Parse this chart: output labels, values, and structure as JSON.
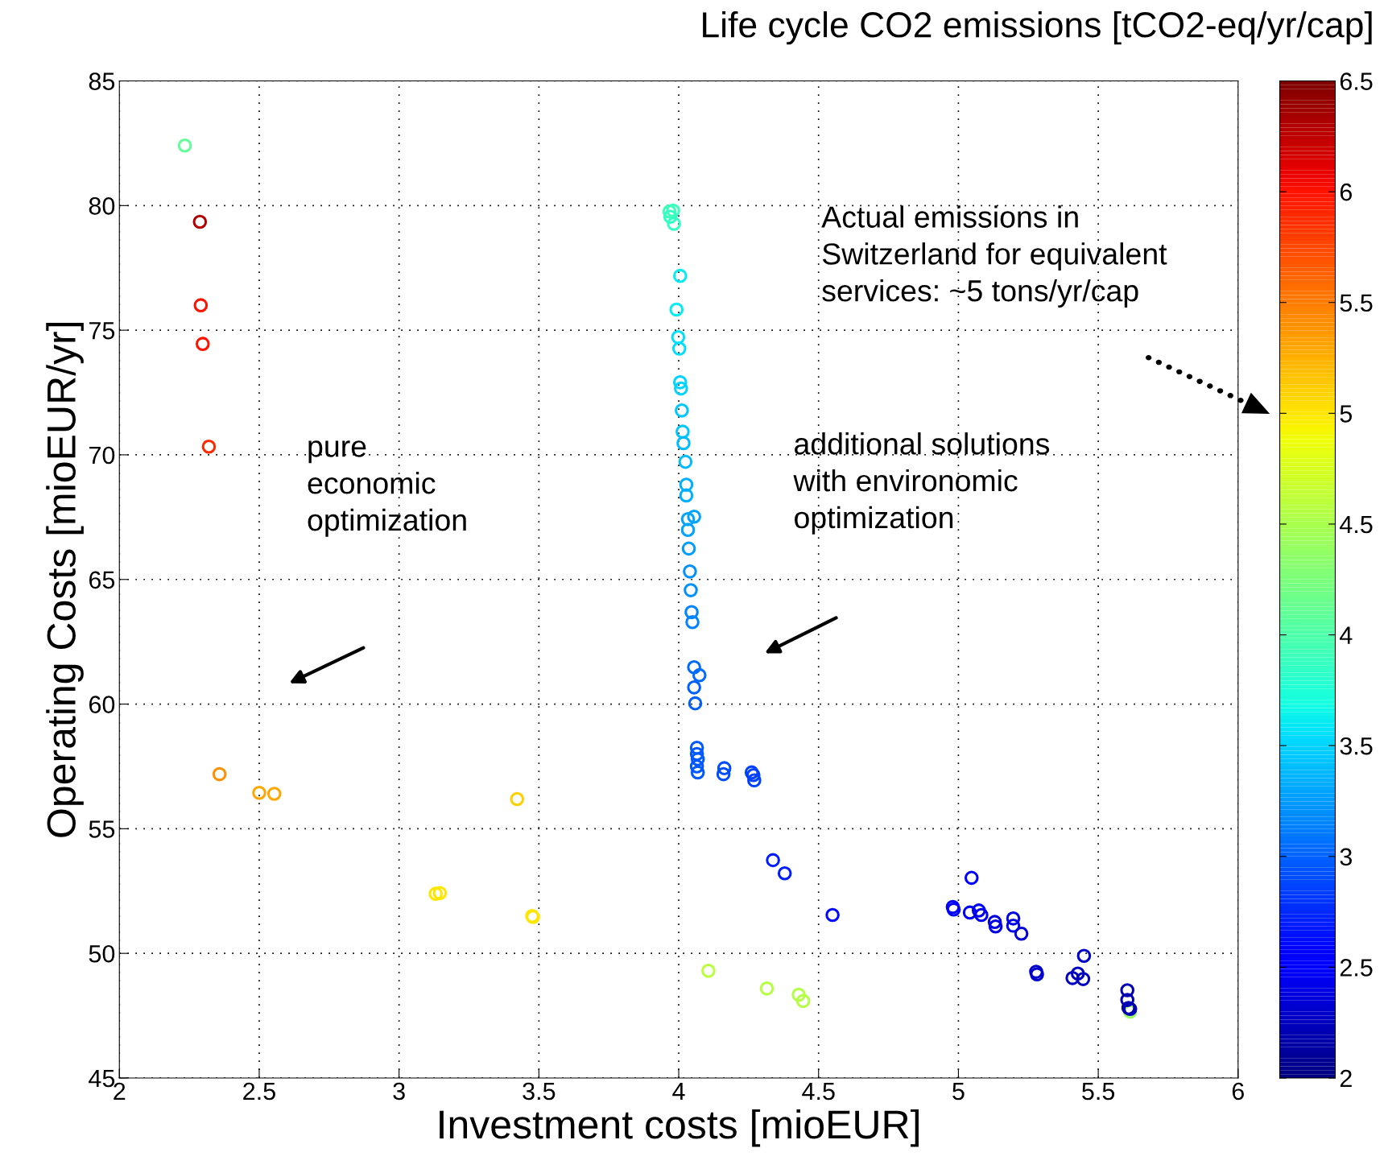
{
  "chart_data": {
    "type": "scatter",
    "xlabel": "Investment costs [mioEUR]",
    "ylabel": "Operating Costs [mioEUR/yr]",
    "clabel": "Life cycle CO2 emissions [tCO2-eq/yr/cap]",
    "xlim": [
      2,
      6
    ],
    "xticks": [
      2,
      2.5,
      3,
      3.5,
      4,
      4.5,
      5,
      5.5,
      6
    ],
    "ylim": [
      45,
      85
    ],
    "yticks": [
      45,
      50,
      55,
      60,
      65,
      70,
      75,
      80,
      85
    ],
    "clim": [
      2,
      6.5
    ],
    "cticks": [
      2,
      2.5,
      3,
      3.5,
      4,
      4.5,
      5,
      5.5,
      6,
      6.5
    ],
    "grid": true,
    "marker": "circle",
    "annotations": [
      "pure economic optimization",
      "additional solutions with environomic optimization",
      "Actual emissions in Switzerland for equivalent services: ~5 tons/yr/cap"
    ],
    "series": [
      {
        "x": [
          2.234,
          2.288,
          2.291,
          2.298,
          2.32,
          2.358,
          2.5,
          2.554,
          3.422,
          3.131,
          3.146,
          3.476,
          3.479,
          4.106,
          4.315,
          4.429,
          4.445,
          5.614,
          3.967,
          3.98,
          3.97,
          3.983,
          4.005,
          3.992,
          3.998,
          4.002,
          4.005,
          4.008,
          4.011,
          4.014,
          4.017,
          4.024,
          4.027,
          4.027,
          4.033,
          4.055,
          4.033,
          4.036,
          4.04,
          4.043,
          4.046,
          4.049,
          4.055,
          4.074,
          4.055,
          4.059,
          4.065,
          4.065,
          4.068,
          4.065,
          4.068,
          4.163,
          4.16,
          4.261,
          4.267,
          4.27,
          4.337,
          4.379,
          4.55,
          4.98,
          4.983,
          5.047,
          5.041,
          5.073,
          5.082,
          5.13,
          5.133,
          5.196,
          5.196,
          5.225,
          5.278,
          5.281,
          5.449,
          5.408,
          5.427,
          5.446,
          5.604,
          5.604,
          5.608,
          5.614
        ],
        "values": [
          82.41,
          79.35,
          76.0,
          74.45,
          70.33,
          57.19,
          56.44,
          56.4,
          56.19,
          52.39,
          52.42,
          51.5,
          51.46,
          49.3,
          48.59,
          48.34,
          48.09,
          47.66,
          79.76,
          79.8,
          79.55,
          79.27,
          77.18,
          75.83,
          74.72,
          74.26,
          72.91,
          72.66,
          71.78,
          70.93,
          70.47,
          69.72,
          68.8,
          68.37,
          67.42,
          67.52,
          66.99,
          66.24,
          65.32,
          64.57,
          63.69,
          63.29,
          61.48,
          61.16,
          60.67,
          60.03,
          58.25,
          58.0,
          57.79,
          57.5,
          57.26,
          57.43,
          57.19,
          57.26,
          57.15,
          56.94,
          53.74,
          53.21,
          51.54,
          51.86,
          51.76,
          53.03,
          51.64,
          51.72,
          51.54,
          51.26,
          51.08,
          51.4,
          51.11,
          50.79,
          49.26,
          49.16,
          49.9,
          49.01,
          49.19,
          48.97,
          48.52,
          48.13,
          47.81,
          47.77
        ],
        "cvalues": [
          4.1,
          6.3,
          6.0,
          6.0,
          5.9,
          5.4,
          5.3,
          5.3,
          5.1,
          5.0,
          5.0,
          5.0,
          5.0,
          4.6,
          4.55,
          4.55,
          4.55,
          4.4,
          3.9,
          3.9,
          3.85,
          3.85,
          3.6,
          3.6,
          3.55,
          3.55,
          3.5,
          3.5,
          3.45,
          3.45,
          3.4,
          3.4,
          3.35,
          3.35,
          3.3,
          3.3,
          3.3,
          3.25,
          3.2,
          3.2,
          3.15,
          3.15,
          3.05,
          3.05,
          3.0,
          3.0,
          2.95,
          2.95,
          2.95,
          2.95,
          2.95,
          2.9,
          2.9,
          2.85,
          2.85,
          2.85,
          2.7,
          2.7,
          2.6,
          2.5,
          2.5,
          2.5,
          2.45,
          2.45,
          2.45,
          2.4,
          2.4,
          2.4,
          2.4,
          2.35,
          2.3,
          2.3,
          2.3,
          2.25,
          2.25,
          2.25,
          2.2,
          2.2,
          2.2,
          2.2
        ]
      }
    ]
  }
}
